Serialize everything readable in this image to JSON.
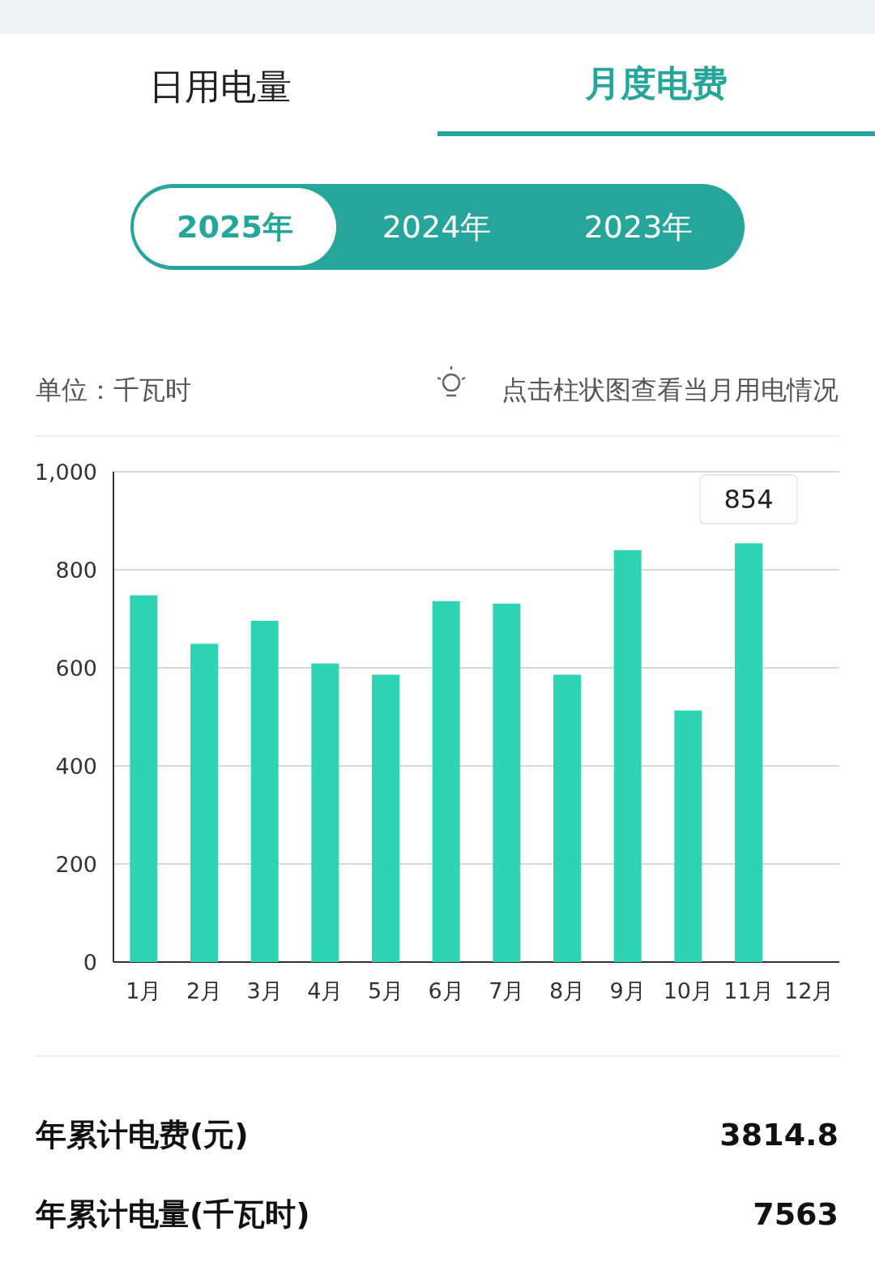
{
  "chart_data": {
    "type": "bar",
    "ylabel": "单位：千瓦时",
    "categories": [
      "1月",
      "2月",
      "3月",
      "4月",
      "5月",
      "6月",
      "7月",
      "8月",
      "9月",
      "10月",
      "11月",
      "12月"
    ],
    "values": [
      748,
      649,
      696,
      609,
      586,
      736,
      731,
      586,
      840,
      513,
      854,
      null
    ],
    "value_labels": [
      null,
      null,
      null,
      null,
      null,
      null,
      null,
      null,
      null,
      null,
      "854",
      null
    ],
    "color": "#2dd4b4",
    "ylim": [
      0,
      1000
    ],
    "yticks": [
      0,
      200,
      400,
      600,
      800,
      {
        "value": 1000,
        "label": "1,000"
      }
    ],
    "grid": "y",
    "annotations": [
      "日用电量",
      "月度电费",
      "2025年",
      "2024年",
      "2023年",
      "点击柱状图查看当月用电情况",
      "年累计电费(元)",
      "3814.8",
      "年累计电量(千瓦时)",
      "7563"
    ]
  }
}
